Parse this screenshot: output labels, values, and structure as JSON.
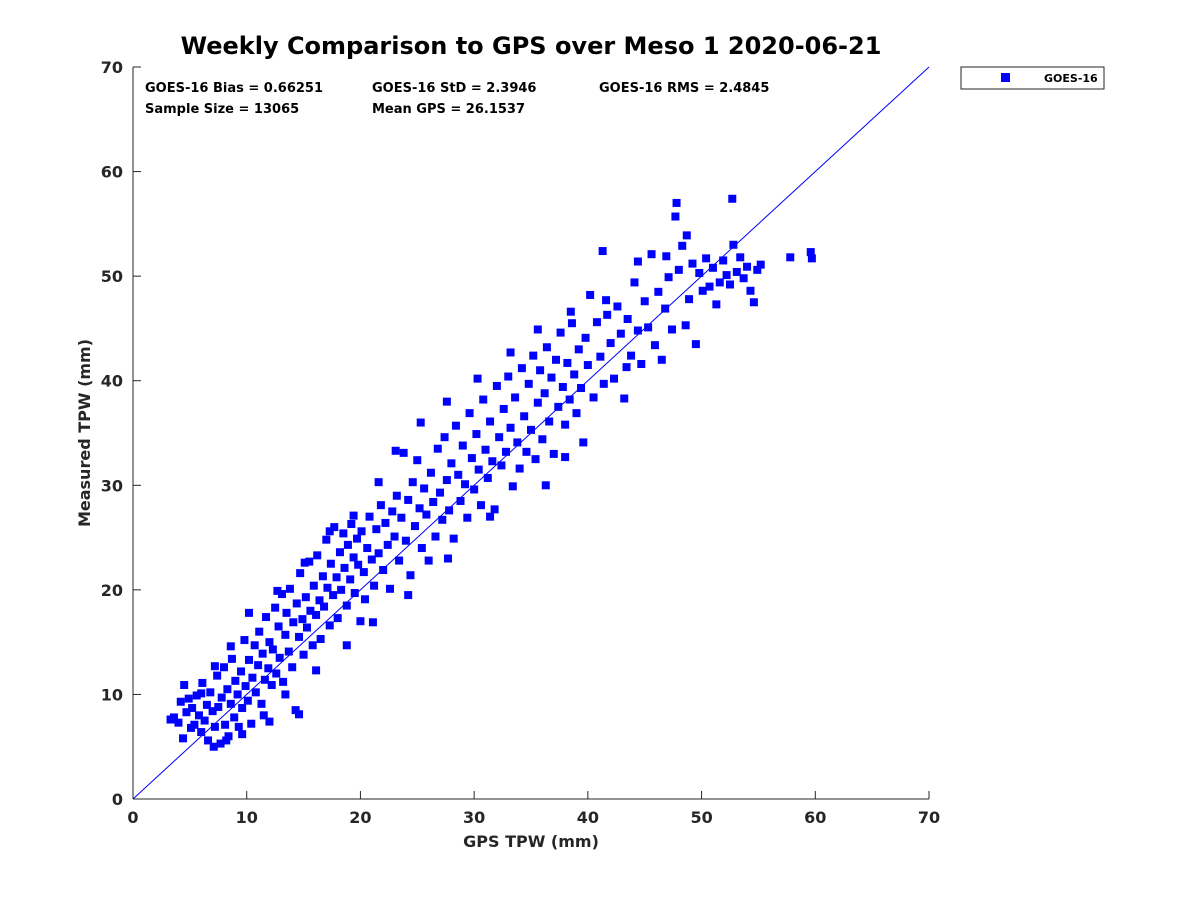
{
  "chart_data": {
    "type": "scatter",
    "title": "Weekly Comparison to GPS over Meso 1 2020-06-21",
    "xlabel": "GPS TPW (mm)",
    "ylabel": "Measured TPW (mm)",
    "xlim": [
      0,
      70
    ],
    "ylim": [
      0,
      70
    ],
    "xticks": [
      "0",
      "10",
      "20",
      "30",
      "40",
      "50",
      "60",
      "70"
    ],
    "yticks": [
      "0",
      "10",
      "20",
      "30",
      "40",
      "50",
      "60",
      "70"
    ],
    "grid": false,
    "legend_position": "outside-top-right",
    "stats": {
      "bias": "GOES-16 Bias = 0.66251",
      "std": "GOES-16 StD = 2.3946",
      "rms": "GOES-16 RMS = 2.4845",
      "sample_size": "Sample Size = 13065",
      "mean_gps": "Mean GPS = 26.1537"
    },
    "reference_line": {
      "x": [
        0,
        70
      ],
      "y": [
        0,
        70
      ]
    },
    "series": [
      {
        "name": "GOES-16",
        "color": "#0000ff",
        "marker": "square",
        "points": [
          [
            3.3,
            7.6
          ],
          [
            3.6,
            7.8
          ],
          [
            4.0,
            7.3
          ],
          [
            4.2,
            9.3
          ],
          [
            4.4,
            5.8
          ],
          [
            4.5,
            10.9
          ],
          [
            4.7,
            8.3
          ],
          [
            4.9,
            9.6
          ],
          [
            5.1,
            6.8
          ],
          [
            5.2,
            8.7
          ],
          [
            5.4,
            7.1
          ],
          [
            5.6,
            9.9
          ],
          [
            5.8,
            8.0
          ],
          [
            6.0,
            6.4
          ],
          [
            6.1,
            11.1
          ],
          [
            6.3,
            7.5
          ],
          [
            6.5,
            9.0
          ],
          [
            6.6,
            5.6
          ],
          [
            6.8,
            10.2
          ],
          [
            7.0,
            8.4
          ],
          [
            7.1,
            5.0
          ],
          [
            7.2,
            6.9
          ],
          [
            7.4,
            11.8
          ],
          [
            7.5,
            8.8
          ],
          [
            7.7,
            5.3
          ],
          [
            7.8,
            9.7
          ],
          [
            8.0,
            12.6
          ],
          [
            8.1,
            7.1
          ],
          [
            8.3,
            10.5
          ],
          [
            8.4,
            6.0
          ],
          [
            8.6,
            9.1
          ],
          [
            8.7,
            13.4
          ],
          [
            8.9,
            7.8
          ],
          [
            9.0,
            11.3
          ],
          [
            9.2,
            10.0
          ],
          [
            9.3,
            6.9
          ],
          [
            9.5,
            12.2
          ],
          [
            9.6,
            8.7
          ],
          [
            9.8,
            15.2
          ],
          [
            9.9,
            10.8
          ],
          [
            10.1,
            9.4
          ],
          [
            10.2,
            13.3
          ],
          [
            10.4,
            7.2
          ],
          [
            10.5,
            11.6
          ],
          [
            10.7,
            14.7
          ],
          [
            10.8,
            10.2
          ],
          [
            11.0,
            12.8
          ],
          [
            11.1,
            16.0
          ],
          [
            11.3,
            9.1
          ],
          [
            11.4,
            13.9
          ],
          [
            11.6,
            11.4
          ],
          [
            11.7,
            17.4
          ],
          [
            11.9,
            12.5
          ],
          [
            12.0,
            15.0
          ],
          [
            12.2,
            10.9
          ],
          [
            12.3,
            14.3
          ],
          [
            12.5,
            18.3
          ],
          [
            12.6,
            12.0
          ],
          [
            12.8,
            16.5
          ],
          [
            12.9,
            13.5
          ],
          [
            13.1,
            19.6
          ],
          [
            13.2,
            11.2
          ],
          [
            13.4,
            15.7
          ],
          [
            13.5,
            17.8
          ],
          [
            13.7,
            14.1
          ],
          [
            13.8,
            20.1
          ],
          [
            14.0,
            12.6
          ],
          [
            14.1,
            16.9
          ],
          [
            14.3,
            8.5
          ],
          [
            14.4,
            18.7
          ],
          [
            14.6,
            15.5
          ],
          [
            14.7,
            21.6
          ],
          [
            14.9,
            17.2
          ],
          [
            15.0,
            13.8
          ],
          [
            15.2,
            19.3
          ],
          [
            15.3,
            16.4
          ],
          [
            15.5,
            22.7
          ],
          [
            15.6,
            18.0
          ],
          [
            15.8,
            14.7
          ],
          [
            15.9,
            20.4
          ],
          [
            16.1,
            17.6
          ],
          [
            16.2,
            23.3
          ],
          [
            16.4,
            19.0
          ],
          [
            16.5,
            15.3
          ],
          [
            16.7,
            21.3
          ],
          [
            16.8,
            18.4
          ],
          [
            17.0,
            24.8
          ],
          [
            17.1,
            20.2
          ],
          [
            17.3,
            16.6
          ],
          [
            17.4,
            22.5
          ],
          [
            17.6,
            19.5
          ],
          [
            17.7,
            26.0
          ],
          [
            17.9,
            21.2
          ],
          [
            18.0,
            17.3
          ],
          [
            18.2,
            23.6
          ],
          [
            18.3,
            20.0
          ],
          [
            18.5,
            25.4
          ],
          [
            18.6,
            22.1
          ],
          [
            18.8,
            18.5
          ],
          [
            18.9,
            24.3
          ],
          [
            19.1,
            21.0
          ],
          [
            19.2,
            26.3
          ],
          [
            19.4,
            23.1
          ],
          [
            19.5,
            19.7
          ],
          [
            19.7,
            24.9
          ],
          [
            19.8,
            22.4
          ],
          [
            20.0,
            17.0
          ],
          [
            20.1,
            25.6
          ],
          [
            20.3,
            21.7
          ],
          [
            20.4,
            19.1
          ],
          [
            20.6,
            24.0
          ],
          [
            20.8,
            27.0
          ],
          [
            21.0,
            22.9
          ],
          [
            21.2,
            20.4
          ],
          [
            21.4,
            25.8
          ],
          [
            21.6,
            23.5
          ],
          [
            21.8,
            28.1
          ],
          [
            22.0,
            21.9
          ],
          [
            22.2,
            26.4
          ],
          [
            22.4,
            24.3
          ],
          [
            22.6,
            20.1
          ],
          [
            22.8,
            27.5
          ],
          [
            23.0,
            25.1
          ],
          [
            23.2,
            29.0
          ],
          [
            23.4,
            22.8
          ],
          [
            23.6,
            26.9
          ],
          [
            23.8,
            33.1
          ],
          [
            24.0,
            24.7
          ],
          [
            24.2,
            28.6
          ],
          [
            24.4,
            21.4
          ],
          [
            24.6,
            30.3
          ],
          [
            24.8,
            26.1
          ],
          [
            25.0,
            32.4
          ],
          [
            25.2,
            27.8
          ],
          [
            25.4,
            24.0
          ],
          [
            25.6,
            29.7
          ],
          [
            25.8,
            27.2
          ],
          [
            26.0,
            22.8
          ],
          [
            26.2,
            31.2
          ],
          [
            26.4,
            28.4
          ],
          [
            26.6,
            25.1
          ],
          [
            26.8,
            33.5
          ],
          [
            27.0,
            29.3
          ],
          [
            27.2,
            26.7
          ],
          [
            27.4,
            34.6
          ],
          [
            27.6,
            30.5
          ],
          [
            27.8,
            27.6
          ],
          [
            28.0,
            32.1
          ],
          [
            28.2,
            24.9
          ],
          [
            28.4,
            35.7
          ],
          [
            28.6,
            31.0
          ],
          [
            28.8,
            28.5
          ],
          [
            29.0,
            33.8
          ],
          [
            29.2,
            30.1
          ],
          [
            29.4,
            26.9
          ],
          [
            29.6,
            36.9
          ],
          [
            29.8,
            32.6
          ],
          [
            30.0,
            29.6
          ],
          [
            30.2,
            34.9
          ],
          [
            30.4,
            31.5
          ],
          [
            30.6,
            28.1
          ],
          [
            30.8,
            38.2
          ],
          [
            31.0,
            33.4
          ],
          [
            31.2,
            30.7
          ],
          [
            31.4,
            36.1
          ],
          [
            31.6,
            32.3
          ],
          [
            31.8,
            27.7
          ],
          [
            32.0,
            39.5
          ],
          [
            32.2,
            34.6
          ],
          [
            32.4,
            31.9
          ],
          [
            32.6,
            37.3
          ],
          [
            32.8,
            33.2
          ],
          [
            33.0,
            40.4
          ],
          [
            33.2,
            35.5
          ],
          [
            33.4,
            29.9
          ],
          [
            33.6,
            38.4
          ],
          [
            33.8,
            34.1
          ],
          [
            34.0,
            31.6
          ],
          [
            34.2,
            41.2
          ],
          [
            34.4,
            36.6
          ],
          [
            34.6,
            33.2
          ],
          [
            34.8,
            39.7
          ],
          [
            35.0,
            35.3
          ],
          [
            35.2,
            42.4
          ],
          [
            35.4,
            32.5
          ],
          [
            35.6,
            37.9
          ],
          [
            35.8,
            41.0
          ],
          [
            36.0,
            34.4
          ],
          [
            36.2,
            38.8
          ],
          [
            36.4,
            43.2
          ],
          [
            36.6,
            36.1
          ],
          [
            36.8,
            40.3
          ],
          [
            37.0,
            33.0
          ],
          [
            37.2,
            42.0
          ],
          [
            37.4,
            37.5
          ],
          [
            37.6,
            44.6
          ],
          [
            37.8,
            39.4
          ],
          [
            38.0,
            35.8
          ],
          [
            38.2,
            41.7
          ],
          [
            38.4,
            38.2
          ],
          [
            38.6,
            45.5
          ],
          [
            38.8,
            40.6
          ],
          [
            39.0,
            36.9
          ],
          [
            39.2,
            43.0
          ],
          [
            39.4,
            39.3
          ],
          [
            39.6,
            34.1
          ],
          [
            39.8,
            44.1
          ],
          [
            40.0,
            41.5
          ],
          [
            40.2,
            48.2
          ],
          [
            40.5,
            38.4
          ],
          [
            40.8,
            45.6
          ],
          [
            41.1,
            42.3
          ],
          [
            41.4,
            39.7
          ],
          [
            41.7,
            46.3
          ],
          [
            42.0,
            43.6
          ],
          [
            42.3,
            40.2
          ],
          [
            42.6,
            47.1
          ],
          [
            42.9,
            44.5
          ],
          [
            43.2,
            38.3
          ],
          [
            43.5,
            45.9
          ],
          [
            43.8,
            42.4
          ],
          [
            44.1,
            49.4
          ],
          [
            44.4,
            44.8
          ],
          [
            44.7,
            41.6
          ],
          [
            45.0,
            47.6
          ],
          [
            45.3,
            45.1
          ],
          [
            45.6,
            52.1
          ],
          [
            45.9,
            43.4
          ],
          [
            46.2,
            48.5
          ],
          [
            46.5,
            42.0
          ],
          [
            46.8,
            46.9
          ],
          [
            47.1,
            49.9
          ],
          [
            47.4,
            44.9
          ],
          [
            47.7,
            55.7
          ],
          [
            48.0,
            50.6
          ],
          [
            48.3,
            52.9
          ],
          [
            48.6,
            45.3
          ],
          [
            48.9,
            47.8
          ],
          [
            49.2,
            51.2
          ],
          [
            49.5,
            43.5
          ],
          [
            49.8,
            50.3
          ],
          [
            50.1,
            48.6
          ],
          [
            50.4,
            51.7
          ],
          [
            50.7,
            49.0
          ],
          [
            51.0,
            50.8
          ],
          [
            51.3,
            47.3
          ],
          [
            51.6,
            49.4
          ],
          [
            51.9,
            51.5
          ],
          [
            52.2,
            50.1
          ],
          [
            52.5,
            49.2
          ],
          [
            52.8,
            53.0
          ],
          [
            53.1,
            50.4
          ],
          [
            53.4,
            51.8
          ],
          [
            53.7,
            49.8
          ],
          [
            54.0,
            50.9
          ],
          [
            54.3,
            48.6
          ],
          [
            54.6,
            47.5
          ],
          [
            54.9,
            50.6
          ],
          [
            55.2,
            51.1
          ],
          [
            57.8,
            51.8
          ],
          [
            59.6,
            52.3
          ],
          [
            59.7,
            51.7
          ],
          [
            52.7,
            57.4
          ],
          [
            47.8,
            57.0
          ],
          [
            41.3,
            52.4
          ],
          [
            43.4,
            41.3
          ],
          [
            38.0,
            32.7
          ],
          [
            36.3,
            30.0
          ],
          [
            31.4,
            27.0
          ],
          [
            27.7,
            23.0
          ],
          [
            24.2,
            19.5
          ],
          [
            21.1,
            16.9
          ],
          [
            18.8,
            14.7
          ],
          [
            16.1,
            12.3
          ],
          [
            13.4,
            10.0
          ],
          [
            11.5,
            8.0
          ],
          [
            9.6,
            6.2
          ],
          [
            8.2,
            5.6
          ],
          [
            12.0,
            7.4
          ],
          [
            14.6,
            8.1
          ],
          [
            6.0,
            10.1
          ],
          [
            7.2,
            12.7
          ],
          [
            8.6,
            14.6
          ],
          [
            10.2,
            17.8
          ],
          [
            12.7,
            19.9
          ],
          [
            15.1,
            22.6
          ],
          [
            17.3,
            25.6
          ],
          [
            19.4,
            27.1
          ],
          [
            21.6,
            30.3
          ],
          [
            23.1,
            33.3
          ],
          [
            25.3,
            36.0
          ],
          [
            27.6,
            38.0
          ],
          [
            30.3,
            40.2
          ],
          [
            33.2,
            42.7
          ],
          [
            35.6,
            44.9
          ],
          [
            38.5,
            46.6
          ],
          [
            41.6,
            47.7
          ],
          [
            44.4,
            51.4
          ],
          [
            46.9,
            51.9
          ],
          [
            48.7,
            53.9
          ]
        ]
      }
    ]
  }
}
